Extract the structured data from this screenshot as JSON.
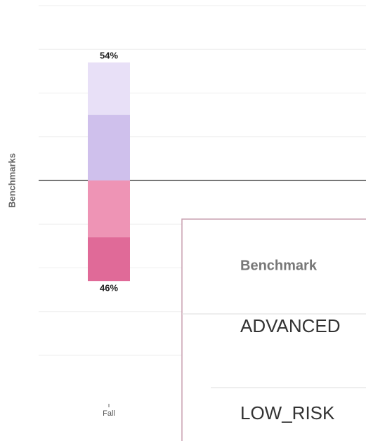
{
  "chart_data": {
    "type": "diverging_stacked_bar",
    "y_axis_label": "Benchmarks",
    "categories": [
      "Fall"
    ],
    "series": [
      {
        "color": "#cfc0ec",
        "values": [
          30
        ]
      },
      {
        "color": "#e8e0f7",
        "values": [
          24
        ]
      },
      {
        "color": "#ee94b5",
        "values": [
          -26
        ]
      },
      {
        "color": "#e06a98",
        "values": [
          -20
        ]
      }
    ],
    "stack_totals": {
      "values": [
        54,
        46
      ],
      "value_labels": [
        "54%",
        "46%"
      ]
    },
    "ylim": [
      -80,
      80
    ],
    "yticks": [
      -80,
      -60,
      -40,
      -20,
      0,
      20,
      40,
      60,
      80
    ],
    "grid": true
  },
  "tooltip": {
    "header": "Benchmark",
    "rows": [
      "ADVANCED",
      "LOW_RISK"
    ]
  }
}
